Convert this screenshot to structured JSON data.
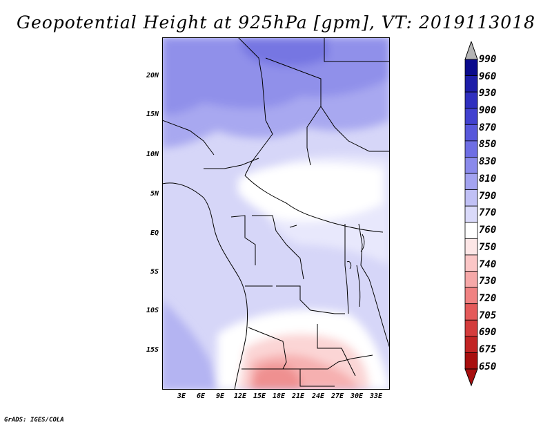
{
  "title": "Geopotential Height at 925hPa [gpm], VT: 2019113018",
  "credit": "GrADS: IGES/COLA",
  "lat_ticks": [
    "20N",
    "15N",
    "10N",
    "5N",
    "EQ",
    "5S",
    "10S",
    "15S"
  ],
  "lon_ticks": [
    "3E",
    "6E",
    "9E",
    "12E",
    "15E",
    "18E",
    "21E",
    "24E",
    "27E",
    "30E",
    "33E"
  ],
  "legend": {
    "levels": [
      "990",
      "960",
      "930",
      "900",
      "870",
      "850",
      "830",
      "810",
      "790",
      "770",
      "760",
      "750",
      "740",
      "730",
      "720",
      "705",
      "690",
      "675",
      "650"
    ],
    "colors": [
      "#0a0a8c",
      "#1d1da8",
      "#2f2fbf",
      "#4141cf",
      "#5858db",
      "#6e6ee4",
      "#8a8aeb",
      "#a3a3f0",
      "#c0c0f5",
      "#dadafa",
      "#ffffff",
      "#fde6e6",
      "#fbc6c6",
      "#f6a8a8",
      "#f08282",
      "#e45a5a",
      "#d43c3c",
      "#c22424",
      "#a80f0f"
    ]
  }
}
